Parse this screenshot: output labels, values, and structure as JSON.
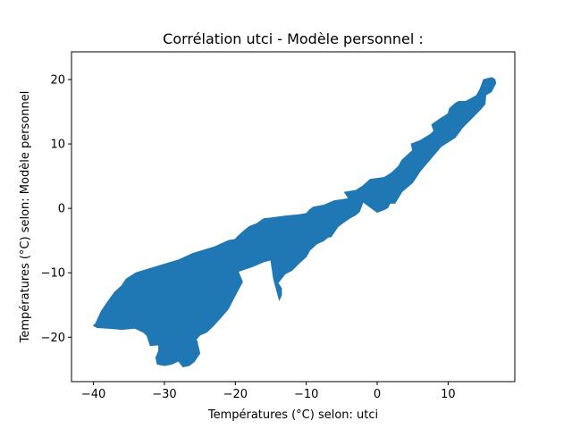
{
  "chart_data": {
    "type": "area",
    "title": "Corrélation utci - Modèle personnel :",
    "xlabel": "Températures (°C) selon: utci",
    "ylabel": "Températures (°C) selon: Modèle personnel",
    "xlim": [
      -43.1,
      19.4
    ],
    "ylim": [
      -26.9,
      24.3
    ],
    "xticks": [
      -40,
      -30,
      -20,
      -10,
      0,
      10
    ],
    "yticks": [
      -20,
      -10,
      0,
      10,
      20
    ],
    "grid": false,
    "color": "#1f77b4",
    "series": [
      {
        "x": [
          -39.7,
          -38.9,
          -38.0,
          -37.0,
          -36.0,
          -35.4,
          -35.0,
          -34.0,
          -31.0,
          -28.0,
          -26.0,
          -23.0,
          -21.0,
          -20.0,
          -19.8,
          -19.0,
          -18.0,
          -17.5,
          -17.0,
          -16.5,
          -16.0,
          -15.0,
          -13.0,
          -11.0,
          -10.0,
          -9.5,
          -9.0,
          -7.5,
          -6.0,
          -4.0,
          -4.6,
          -3.0,
          -2.0,
          -1.0,
          1.0,
          2.0,
          3.0,
          3.5,
          5.0,
          4.8,
          6.0,
          7.5,
          8.0,
          7.7,
          9.0,
          10.0,
          10.2,
          11.0,
          11.5,
          12.5,
          14.0,
          14.5,
          15.0,
          15.8,
          16.2,
          16.6,
          16.7,
          16.1,
          15.3,
          15.2,
          14.6,
          12.0,
          11.0,
          9.0,
          7.0,
          6.0,
          5.0,
          3.5,
          2.5,
          1.8,
          1.5,
          1.0,
          0.5,
          0.0,
          -1.0,
          -2.0,
          -2.5,
          -3.0,
          -4.0,
          -5.5,
          -6.0,
          -6.5,
          -7.0,
          -7.5,
          -8.5,
          -9.5,
          -10.0,
          -11.0,
          -12.0,
          -13.0,
          -14.0,
          -13.5,
          -13.5,
          -13.8,
          -14.6,
          -15.0,
          -16.0,
          -17.5,
          -19.6,
          -19.0,
          -20.0,
          -21.0,
          -22.0,
          -23.0,
          -24.0,
          -25.0,
          -25.5,
          -25.0,
          -25.8,
          -26.5,
          -27.4,
          -28.0,
          -29.0,
          -30.0,
          -31.0,
          -31.2,
          -30.8,
          -30.8,
          -32.0,
          -32.5,
          -32.5,
          -33.0,
          -34.2,
          -36.0,
          -38.0,
          -39.5,
          -40.0,
          -39.7
        ],
        "y": [
          -17.9,
          -16.0,
          -14.5,
          -13.0,
          -12.0,
          -11.0,
          -10.7,
          -10.0,
          -9.0,
          -8.0,
          -7.0,
          -6.0,
          -5.0,
          -4.8,
          -4.5,
          -3.7,
          -2.8,
          -2.6,
          -2.4,
          -2.0,
          -1.6,
          -1.5,
          -1.2,
          -1.0,
          -0.8,
          -0.2,
          0.2,
          0.5,
          1.2,
          1.5,
          2.5,
          2.8,
          3.5,
          4.5,
          4.8,
          5.5,
          6.5,
          7.5,
          9.0,
          10.0,
          10.5,
          11.5,
          12.0,
          13.0,
          14.0,
          14.7,
          15.5,
          16.3,
          16.6,
          16.6,
          17.5,
          18.5,
          20.0,
          20.2,
          20.3,
          20.0,
          19.4,
          18.1,
          17.6,
          16.2,
          15.4,
          12.5,
          11.0,
          9.6,
          7.0,
          5.7,
          4.0,
          2.6,
          0.8,
          0.8,
          0.1,
          -0.2,
          -0.4,
          -0.6,
          0.2,
          1.0,
          -0.5,
          -1.0,
          -1.6,
          -2.8,
          -3.6,
          -4.4,
          -4.5,
          -5.0,
          -5.5,
          -6.5,
          -7.5,
          -8.5,
          -9.6,
          -10.2,
          -11.6,
          -12.4,
          -13.5,
          -14.2,
          -11.0,
          -8.0,
          -8.3,
          -9.0,
          -9.8,
          -11.4,
          -13.5,
          -15.6,
          -16.9,
          -18.1,
          -19.2,
          -19.7,
          -20.3,
          -22.5,
          -23.8,
          -24.4,
          -24.6,
          -23.7,
          -24.2,
          -24.4,
          -24.2,
          -23.2,
          -22.1,
          -21.2,
          -21.3,
          -19.6,
          -19.7,
          -19.2,
          -18.6,
          -18.8,
          -18.6,
          -18.5,
          -18.2,
          -17.9
        ]
      }
    ]
  }
}
